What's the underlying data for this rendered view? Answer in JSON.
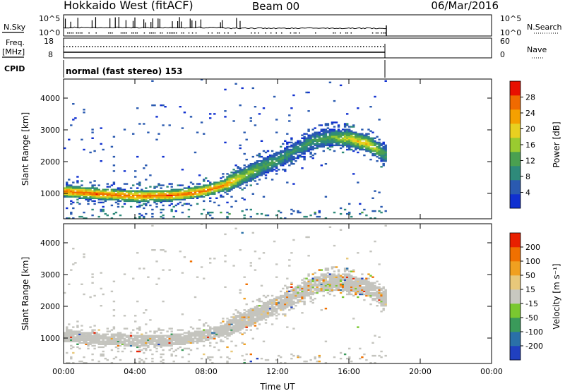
{
  "header": {
    "station": "Hokkaido West (fitACF)",
    "beam": "Beam 00",
    "date": "06/Mar/2016"
  },
  "status_panel": {
    "nsky_label": "N.Sky",
    "nsky_ticks": [
      "10^5",
      "10^0"
    ],
    "nsearch_ticks": [
      "10^5",
      "10^0"
    ],
    "nsearch_label": "N.Search",
    "freq_label": "Freq.",
    "freq_unit": "[MHz]",
    "freq_ticks": [
      "18",
      "8"
    ],
    "nave_ticks": [
      "60",
      "0"
    ],
    "nave_label": "Nave",
    "cpid_label": "CPID",
    "cpid_value": "normal (fast stereo) 153"
  },
  "colors": {
    "power_scale": [
      "#1030d0",
      "#2a5ab0",
      "#2e8a7a",
      "#4aa050",
      "#9acb30",
      "#e8d020",
      "#f5a000",
      "#f06a00",
      "#e81000"
    ],
    "velocity_scale": [
      "#2040c0",
      "#2a70a8",
      "#3a9a5a",
      "#7ac830",
      "#c8c8c0",
      "#e8c87a",
      "#f0a020",
      "#f07000",
      "#e82000"
    ],
    "scatter_ground": "#c4c4be"
  },
  "chart_data": [
    {
      "type": "heatmap",
      "panel": "power",
      "quantity": "Power",
      "ylabel": "Slant Range [km]",
      "ylim": [
        200,
        4600
      ],
      "yticks": [
        "1000",
        "2000",
        "3000",
        "4000"
      ],
      "xlim_hours": [
        0,
        24
      ],
      "data_end_hour": 18.1,
      "colorbar_label": "Power [dB]",
      "colorbar_ticks": [
        "4",
        "8",
        "12",
        "16",
        "20",
        "24",
        "28"
      ],
      "colorbar_range": [
        0,
        32
      ],
      "scatter_band": {
        "hours": [
          0,
          2,
          4,
          6,
          7,
          8,
          9,
          10,
          11,
          12,
          13,
          14,
          15,
          16,
          17,
          18
        ],
        "center_km": [
          1050,
          960,
          900,
          920,
          980,
          1080,
          1250,
          1520,
          1800,
          2050,
          2350,
          2650,
          2750,
          2700,
          2550,
          2200
        ],
        "peak_power_db": [
          28,
          28,
          28,
          28,
          28,
          27,
          26,
          18,
          14,
          12,
          10,
          12,
          14,
          20,
          22,
          12
        ]
      }
    },
    {
      "type": "heatmap",
      "panel": "velocity",
      "quantity": "Velocity",
      "ylabel": "Slant Range [km]",
      "ylim": [
        200,
        4600
      ],
      "yticks": [
        "1000",
        "2000",
        "3000",
        "4000"
      ],
      "xlim_hours": [
        0,
        24
      ],
      "data_end_hour": 18.1,
      "xticks": [
        "00:00",
        "04:00",
        "08:00",
        "12:00",
        "16:00",
        "20:00",
        "00:00"
      ],
      "xlabel": "Time UT",
      "colorbar_label": "Velocity [m s⁻¹]",
      "colorbar_ticks": [
        "200",
        "100",
        "50",
        "15",
        "-15",
        "-50",
        "-100",
        "-200"
      ],
      "dominant_velocity": "ground scatter ~0 m/s"
    }
  ]
}
